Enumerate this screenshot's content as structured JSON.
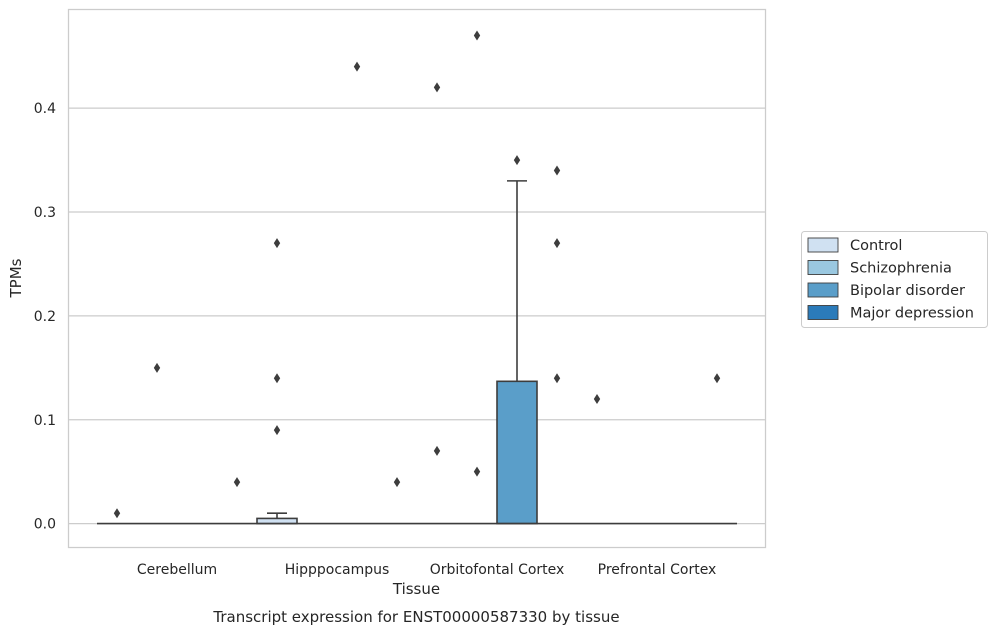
{
  "chart_data": {
    "type": "box",
    "xlabel": "Tissue",
    "ylabel": "TPMs",
    "caption": "Transcript expression for ENST00000587330 by tissue",
    "ylim": [
      -0.023,
      0.495
    ],
    "yticks": [
      "0.0",
      "0.1",
      "0.2",
      "0.3",
      "0.4"
    ],
    "yticks_values": [
      0.0,
      0.1,
      0.2,
      0.3,
      0.4
    ],
    "grid": true,
    "legend_placement": "right",
    "categories": [
      "Cerebellum",
      "Hipppocampus",
      "Orbitofontal Cortex",
      "Prefrontal Cortex"
    ],
    "series": [
      {
        "name": "Control",
        "color": "#d0e1f2",
        "boxes": [
          {
            "category": "Cerebellum",
            "q1": 0.0,
            "median": 0.0,
            "q3": 0.0,
            "whisker_low": 0.0,
            "whisker_high": 0.0,
            "outliers": [
              0.01
            ]
          },
          {
            "category": "Hipppocampus",
            "q1": 0.0,
            "median": 0.0,
            "q3": 0.005,
            "whisker_low": 0.0,
            "whisker_high": 0.01,
            "outliers": [
              0.27,
              0.14,
              0.09
            ]
          },
          {
            "category": "Orbitofontal Cortex",
            "q1": 0.0,
            "median": 0.0,
            "q3": 0.0,
            "whisker_low": 0.0,
            "whisker_high": 0.0,
            "outliers": [
              0.42,
              0.07
            ]
          },
          {
            "category": "Prefrontal Cortex",
            "q1": 0.0,
            "median": 0.0,
            "q3": 0.0,
            "whisker_low": 0.0,
            "whisker_high": 0.0,
            "outliers": [
              0.12
            ]
          }
        ]
      },
      {
        "name": "Schizophrenia",
        "color": "#9ac8e0",
        "boxes": [
          {
            "category": "Cerebellum",
            "q1": 0.0,
            "median": 0.0,
            "q3": 0.0,
            "whisker_low": 0.0,
            "whisker_high": 0.0,
            "outliers": [
              0.15
            ]
          },
          {
            "category": "Hipppocampus",
            "q1": 0.0,
            "median": 0.0,
            "q3": 0.0,
            "whisker_low": 0.0,
            "whisker_high": 0.0,
            "outliers": []
          },
          {
            "category": "Orbitofontal Cortex",
            "q1": 0.0,
            "median": 0.0,
            "q3": 0.0,
            "whisker_low": 0.0,
            "whisker_high": 0.0,
            "outliers": [
              0.47,
              0.05
            ]
          },
          {
            "category": "Prefrontal Cortex",
            "q1": 0.0,
            "median": 0.0,
            "q3": 0.0,
            "whisker_low": 0.0,
            "whisker_high": 0.0,
            "outliers": []
          }
        ]
      },
      {
        "name": "Bipolar disorder",
        "color": "#5a9ec9",
        "boxes": [
          {
            "category": "Cerebellum",
            "q1": 0.0,
            "median": 0.0,
            "q3": 0.0,
            "whisker_low": 0.0,
            "whisker_high": 0.0,
            "outliers": []
          },
          {
            "category": "Hipppocampus",
            "q1": 0.0,
            "median": 0.0,
            "q3": 0.0,
            "whisker_low": 0.0,
            "whisker_high": 0.0,
            "outliers": [
              0.44
            ]
          },
          {
            "category": "Orbitofontal Cortex",
            "q1": 0.0,
            "median": 0.0,
            "q3": 0.137,
            "whisker_low": 0.0,
            "whisker_high": 0.33,
            "outliers": [
              0.35
            ]
          },
          {
            "category": "Prefrontal Cortex",
            "q1": 0.0,
            "median": 0.0,
            "q3": 0.0,
            "whisker_low": 0.0,
            "whisker_high": 0.0,
            "outliers": []
          }
        ]
      },
      {
        "name": "Major depression",
        "color": "#2b7bba",
        "boxes": [
          {
            "category": "Cerebellum",
            "q1": 0.0,
            "median": 0.0,
            "q3": 0.0,
            "whisker_low": 0.0,
            "whisker_high": 0.0,
            "outliers": [
              0.04
            ]
          },
          {
            "category": "Hipppocampus",
            "q1": 0.0,
            "median": 0.0,
            "q3": 0.0,
            "whisker_low": 0.0,
            "whisker_high": 0.0,
            "outliers": [
              0.04
            ]
          },
          {
            "category": "Orbitofontal Cortex",
            "q1": 0.0,
            "median": 0.0,
            "q3": 0.0,
            "whisker_low": 0.0,
            "whisker_high": 0.0,
            "outliers": [
              0.34,
              0.27,
              0.14
            ]
          },
          {
            "category": "Prefrontal Cortex",
            "q1": 0.0,
            "median": 0.0,
            "q3": 0.0,
            "whisker_low": 0.0,
            "whisker_high": 0.0,
            "outliers": [
              0.14
            ]
          }
        ]
      }
    ]
  },
  "colors": {
    "grid": "#cccccc",
    "frame": "#cccccc",
    "box_edge": "#3d3d3d",
    "outlier": "#3d3d3d",
    "text": "#262626"
  }
}
